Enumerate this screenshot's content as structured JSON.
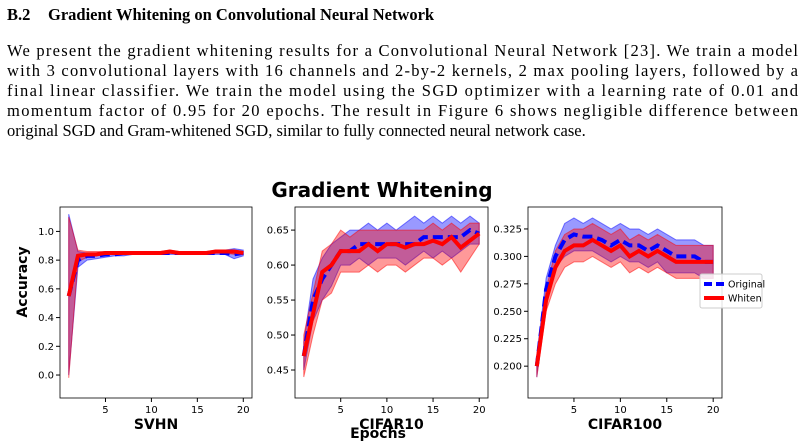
{
  "section": {
    "number": "B.2",
    "title": "Gradient Whitening on Convolutional Neural Network"
  },
  "paragraph": [
    "We present the gradient whitening results for a Convolutional Neural Network [23]. We train a model",
    "with 3 convolutional layers with 16 channels and 2-by-2 kernels, 2 max pooling layers, followed by a",
    "final linear classifier. We train the model using the SGD optimizer with a learning rate of 0.01 and",
    "momentum factor of 0.95 for 20 epochs. The result in Figure 6 shows negligible difference between",
    "original SGD and Gram-whitened SGD, similar to fully connected neural network case."
  ],
  "figure": {
    "title": "Gradient Whitening",
    "xlabel": "Epochs",
    "ylabel": "Accuracy"
  },
  "chart_data": [
    {
      "type": "line",
      "xlabel": "SVHN",
      "x": [
        1,
        2,
        3,
        4,
        5,
        6,
        7,
        8,
        9,
        10,
        11,
        12,
        13,
        14,
        15,
        16,
        17,
        18,
        19,
        20
      ],
      "xlim": [
        0.05,
        20.95
      ],
      "xticks": [
        5,
        10,
        15,
        20
      ],
      "ylim": [
        -0.16,
        1.17
      ],
      "yticks": [
        {
          "value": 0,
          "label": "0.0"
        },
        0.2,
        0.4,
        0.6,
        0.8,
        {
          "value": 1,
          "label": "1.0"
        }
      ],
      "series": [
        {
          "color": "#0000ff",
          "style": "dashed",
          "values": [
            0.55,
            0.8,
            0.83,
            0.83,
            0.84,
            0.84,
            0.85,
            0.85,
            0.85,
            0.85,
            0.85,
            0.85,
            0.85,
            0.85,
            0.85,
            0.85,
            0.85,
            0.85,
            0.84,
            0.85
          ],
          "lower": [
            0.0,
            0.75,
            0.8,
            0.81,
            0.82,
            0.83,
            0.83,
            0.84,
            0.84,
            0.84,
            0.84,
            0.84,
            0.84,
            0.84,
            0.84,
            0.84,
            0.84,
            0.84,
            0.81,
            0.83
          ],
          "upper": [
            1.12,
            0.86,
            0.85,
            0.85,
            0.86,
            0.86,
            0.86,
            0.86,
            0.86,
            0.86,
            0.86,
            0.86,
            0.86,
            0.86,
            0.86,
            0.86,
            0.86,
            0.87,
            0.88,
            0.87
          ]
        },
        {
          "color": "#ff0000",
          "style": "solid",
          "values": [
            0.55,
            0.83,
            0.84,
            0.84,
            0.85,
            0.85,
            0.85,
            0.85,
            0.85,
            0.85,
            0.85,
            0.86,
            0.85,
            0.85,
            0.85,
            0.85,
            0.86,
            0.86,
            0.86,
            0.85
          ],
          "lower": [
            -0.02,
            0.79,
            0.82,
            0.83,
            0.84,
            0.84,
            0.84,
            0.84,
            0.84,
            0.84,
            0.84,
            0.85,
            0.84,
            0.84,
            0.84,
            0.84,
            0.85,
            0.85,
            0.84,
            0.84
          ],
          "upper": [
            1.1,
            0.87,
            0.86,
            0.86,
            0.86,
            0.86,
            0.86,
            0.86,
            0.86,
            0.86,
            0.86,
            0.87,
            0.86,
            0.86,
            0.86,
            0.86,
            0.87,
            0.87,
            0.87,
            0.86
          ]
        }
      ]
    },
    {
      "type": "line",
      "xlabel": "CIFAR10",
      "x": [
        1,
        2,
        3,
        4,
        5,
        6,
        7,
        8,
        9,
        10,
        11,
        12,
        13,
        14,
        15,
        16,
        17,
        18,
        19,
        20
      ],
      "xlim": [
        0.05,
        20.95
      ],
      "xticks": [
        5,
        10,
        15,
        20
      ],
      "ylim": [
        0.41,
        0.683
      ],
      "yticks": [
        0.45,
        {
          "value": 0.5,
          "label": "0.50"
        },
        0.55,
        {
          "value": 0.6,
          "label": "0.60"
        },
        0.65
      ],
      "series": [
        {
          "color": "#0000ff",
          "style": "dashed",
          "values": [
            0.47,
            0.55,
            0.58,
            0.6,
            0.62,
            0.62,
            0.63,
            0.63,
            0.63,
            0.63,
            0.63,
            0.63,
            0.63,
            0.64,
            0.64,
            0.64,
            0.64,
            0.64,
            0.65,
            0.645
          ],
          "lower": [
            0.45,
            0.52,
            0.55,
            0.57,
            0.6,
            0.6,
            0.61,
            0.6,
            0.61,
            0.61,
            0.61,
            0.6,
            0.61,
            0.62,
            0.61,
            0.62,
            0.61,
            0.62,
            0.63,
            0.63
          ],
          "upper": [
            0.49,
            0.58,
            0.61,
            0.63,
            0.64,
            0.65,
            0.65,
            0.66,
            0.65,
            0.66,
            0.65,
            0.66,
            0.67,
            0.66,
            0.67,
            0.66,
            0.67,
            0.66,
            0.67,
            0.66
          ]
        },
        {
          "color": "#ff0000",
          "style": "solid",
          "values": [
            0.47,
            0.53,
            0.59,
            0.6,
            0.62,
            0.62,
            0.62,
            0.63,
            0.62,
            0.63,
            0.63,
            0.625,
            0.63,
            0.63,
            0.635,
            0.63,
            0.64,
            0.625,
            0.635,
            0.645
          ],
          "lower": [
            0.44,
            0.5,
            0.55,
            0.56,
            0.59,
            0.59,
            0.59,
            0.6,
            0.59,
            0.6,
            0.6,
            0.59,
            0.6,
            0.61,
            0.61,
            0.6,
            0.61,
            0.59,
            0.61,
            0.63
          ],
          "upper": [
            0.5,
            0.56,
            0.62,
            0.63,
            0.65,
            0.64,
            0.65,
            0.65,
            0.65,
            0.65,
            0.65,
            0.65,
            0.65,
            0.65,
            0.66,
            0.65,
            0.66,
            0.65,
            0.66,
            0.66
          ]
        }
      ]
    },
    {
      "type": "line",
      "xlabel": "CIFAR100",
      "legend": "right",
      "x": [
        1,
        2,
        3,
        4,
        5,
        6,
        7,
        8,
        9,
        10,
        11,
        12,
        13,
        14,
        15,
        16,
        17,
        18,
        19,
        20
      ],
      "xlim": [
        0.05,
        20.95
      ],
      "xticks": [
        5,
        10,
        15,
        20
      ],
      "ylim": [
        0.171,
        0.345
      ],
      "yticks": [
        {
          "value": 0.2,
          "label": "0.200"
        },
        0.225,
        {
          "value": 0.25,
          "label": "0.250"
        },
        0.275,
        {
          "value": 0.3,
          "label": "0.300"
        },
        0.325
      ],
      "series": [
        {
          "name": "Original",
          "color": "#0000ff",
          "style": "dashed",
          "values": [
            0.2,
            0.27,
            0.3,
            0.315,
            0.32,
            0.318,
            0.318,
            0.315,
            0.31,
            0.315,
            0.31,
            0.31,
            0.305,
            0.31,
            0.305,
            0.3,
            0.3,
            0.3,
            0.295,
            0.295
          ],
          "lower": [
            0.19,
            0.26,
            0.29,
            0.3,
            0.305,
            0.305,
            0.305,
            0.3,
            0.295,
            0.3,
            0.295,
            0.295,
            0.29,
            0.295,
            0.285,
            0.285,
            0.285,
            0.285,
            0.28,
            0.28
          ],
          "upper": [
            0.21,
            0.28,
            0.31,
            0.33,
            0.335,
            0.33,
            0.335,
            0.33,
            0.325,
            0.33,
            0.325,
            0.325,
            0.32,
            0.325,
            0.32,
            0.315,
            0.315,
            0.315,
            0.31,
            0.31
          ]
        },
        {
          "name": "Whiten",
          "color": "#ff0000",
          "style": "solid",
          "values": [
            0.2,
            0.26,
            0.29,
            0.305,
            0.31,
            0.31,
            0.315,
            0.31,
            0.305,
            0.31,
            0.3,
            0.305,
            0.3,
            0.305,
            0.3,
            0.295,
            0.295,
            0.295,
            0.295,
            0.295
          ],
          "lower": [
            0.19,
            0.25,
            0.275,
            0.29,
            0.295,
            0.295,
            0.3,
            0.295,
            0.29,
            0.295,
            0.285,
            0.29,
            0.285,
            0.29,
            0.285,
            0.28,
            0.28,
            0.28,
            0.28,
            0.28
          ],
          "upper": [
            0.21,
            0.27,
            0.305,
            0.32,
            0.325,
            0.325,
            0.33,
            0.325,
            0.32,
            0.325,
            0.315,
            0.32,
            0.315,
            0.32,
            0.315,
            0.31,
            0.31,
            0.31,
            0.31,
            0.31
          ]
        }
      ]
    }
  ]
}
